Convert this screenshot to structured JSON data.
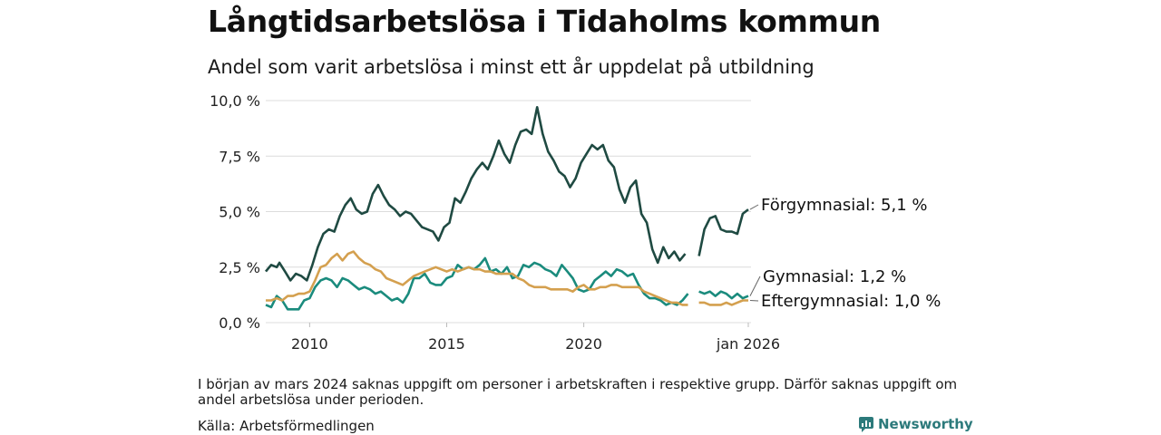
{
  "title": "Långtidsarbetslösa i Tidaholms kommun",
  "subtitle": "Andel som varit arbetslösa i minst ett år uppdelat på utbildning",
  "note": "I början av mars 2024 saknas uppgift om personer i arbetskraften i respektive grupp. Därför saknas uppgift om andel arbetslösa under perioden.",
  "source": "Källa: Arbetsförmedlingen",
  "brand": "Newsworthy",
  "chart_data": {
    "type": "line",
    "title": "Långtidsarbetslösa i Tidaholms kommun",
    "ylabel": "",
    "xlabel": "",
    "xlim": [
      2008.4,
      2026.1
    ],
    "ylim": [
      0,
      10
    ],
    "yticks": [
      0,
      2.5,
      5,
      7.5,
      10
    ],
    "ytick_labels": [
      "0,0 %",
      "2,5 %",
      "5,0 %",
      "7,5 %",
      "10,0 %"
    ],
    "xticks": [
      2010,
      2015,
      2020,
      2026.0
    ],
    "xtick_labels": [
      "2010",
      "2015",
      "2020",
      "jan 2026"
    ],
    "grid": true,
    "series": [
      {
        "name": "Förgymnasial",
        "color": "#1f4a42",
        "end_label": "Förgymnasial: 5,1 %",
        "points": [
          [
            2008.4,
            2.3
          ],
          [
            2008.6,
            2.6
          ],
          [
            2008.8,
            2.5
          ],
          [
            2008.9,
            2.7
          ],
          [
            2009.1,
            2.3
          ],
          [
            2009.3,
            1.9
          ],
          [
            2009.5,
            2.2
          ],
          [
            2009.7,
            2.1
          ],
          [
            2009.9,
            1.9
          ],
          [
            2010.1,
            2.6
          ],
          [
            2010.3,
            3.4
          ],
          [
            2010.5,
            4.0
          ],
          [
            2010.7,
            4.2
          ],
          [
            2010.9,
            4.1
          ],
          [
            2011.1,
            4.8
          ],
          [
            2011.3,
            5.3
          ],
          [
            2011.5,
            5.6
          ],
          [
            2011.7,
            5.1
          ],
          [
            2011.9,
            4.9
          ],
          [
            2012.1,
            5.0
          ],
          [
            2012.3,
            5.8
          ],
          [
            2012.5,
            6.2
          ],
          [
            2012.7,
            5.7
          ],
          [
            2012.9,
            5.3
          ],
          [
            2013.1,
            5.1
          ],
          [
            2013.3,
            4.8
          ],
          [
            2013.5,
            5.0
          ],
          [
            2013.7,
            4.9
          ],
          [
            2013.9,
            4.6
          ],
          [
            2014.1,
            4.3
          ],
          [
            2014.3,
            4.2
          ],
          [
            2014.5,
            4.1
          ],
          [
            2014.7,
            3.7
          ],
          [
            2014.9,
            4.3
          ],
          [
            2015.1,
            4.5
          ],
          [
            2015.3,
            5.6
          ],
          [
            2015.5,
            5.4
          ],
          [
            2015.7,
            5.9
          ],
          [
            2015.9,
            6.5
          ],
          [
            2016.1,
            6.9
          ],
          [
            2016.3,
            7.2
          ],
          [
            2016.5,
            6.9
          ],
          [
            2016.7,
            7.5
          ],
          [
            2016.9,
            8.2
          ],
          [
            2017.1,
            7.6
          ],
          [
            2017.3,
            7.2
          ],
          [
            2017.5,
            8.0
          ],
          [
            2017.7,
            8.6
          ],
          [
            2017.9,
            8.7
          ],
          [
            2018.1,
            8.5
          ],
          [
            2018.3,
            9.7
          ],
          [
            2018.5,
            8.5
          ],
          [
            2018.7,
            7.7
          ],
          [
            2018.9,
            7.3
          ],
          [
            2019.1,
            6.8
          ],
          [
            2019.3,
            6.6
          ],
          [
            2019.5,
            6.1
          ],
          [
            2019.7,
            6.5
          ],
          [
            2019.9,
            7.2
          ],
          [
            2020.1,
            7.6
          ],
          [
            2020.3,
            8.0
          ],
          [
            2020.5,
            7.8
          ],
          [
            2020.7,
            8.0
          ],
          [
            2020.9,
            7.3
          ],
          [
            2021.1,
            7.0
          ],
          [
            2021.3,
            6.0
          ],
          [
            2021.5,
            5.4
          ],
          [
            2021.7,
            6.1
          ],
          [
            2021.9,
            6.4
          ],
          [
            2022.1,
            4.9
          ],
          [
            2022.3,
            4.5
          ],
          [
            2022.5,
            3.3
          ],
          [
            2022.7,
            2.7
          ],
          [
            2022.9,
            3.4
          ],
          [
            2023.1,
            2.9
          ],
          [
            2023.3,
            3.2
          ],
          [
            2023.5,
            2.8
          ],
          [
            2023.7,
            3.1
          ],
          [
            null,
            null
          ],
          [
            2024.2,
            3.0
          ],
          [
            2024.4,
            4.2
          ],
          [
            2024.6,
            4.7
          ],
          [
            2024.8,
            4.8
          ],
          [
            2025.0,
            4.2
          ],
          [
            2025.2,
            4.1
          ],
          [
            2025.4,
            4.1
          ],
          [
            2025.6,
            4.0
          ],
          [
            2025.8,
            4.9
          ],
          [
            2026.0,
            5.1
          ]
        ]
      },
      {
        "name": "Gymnasial",
        "color": "#1a8b7d",
        "end_label": "Gymnasial: 1,2 %",
        "points": [
          [
            2008.4,
            0.8
          ],
          [
            2008.6,
            0.7
          ],
          [
            2008.8,
            1.2
          ],
          [
            2009.0,
            1.0
          ],
          [
            2009.2,
            0.6
          ],
          [
            2009.4,
            0.6
          ],
          [
            2009.6,
            0.6
          ],
          [
            2009.8,
            1.0
          ],
          [
            2010.0,
            1.1
          ],
          [
            2010.2,
            1.6
          ],
          [
            2010.4,
            1.9
          ],
          [
            2010.6,
            2.0
          ],
          [
            2010.8,
            1.9
          ],
          [
            2011.0,
            1.6
          ],
          [
            2011.2,
            2.0
          ],
          [
            2011.4,
            1.9
          ],
          [
            2011.6,
            1.7
          ],
          [
            2011.8,
            1.5
          ],
          [
            2012.0,
            1.6
          ],
          [
            2012.2,
            1.5
          ],
          [
            2012.4,
            1.3
          ],
          [
            2012.6,
            1.4
          ],
          [
            2012.8,
            1.2
          ],
          [
            2013.0,
            1.0
          ],
          [
            2013.2,
            1.1
          ],
          [
            2013.4,
            0.9
          ],
          [
            2013.6,
            1.3
          ],
          [
            2013.8,
            2.0
          ],
          [
            2014.0,
            2.0
          ],
          [
            2014.2,
            2.2
          ],
          [
            2014.4,
            1.8
          ],
          [
            2014.6,
            1.7
          ],
          [
            2014.8,
            1.7
          ],
          [
            2015.0,
            2.0
          ],
          [
            2015.2,
            2.1
          ],
          [
            2015.4,
            2.6
          ],
          [
            2015.6,
            2.4
          ],
          [
            2015.8,
            2.5
          ],
          [
            2016.0,
            2.4
          ],
          [
            2016.2,
            2.6
          ],
          [
            2016.4,
            2.9
          ],
          [
            2016.6,
            2.3
          ],
          [
            2016.8,
            2.4
          ],
          [
            2017.0,
            2.2
          ],
          [
            2017.2,
            2.5
          ],
          [
            2017.4,
            2.0
          ],
          [
            2017.6,
            2.1
          ],
          [
            2017.8,
            2.6
          ],
          [
            2018.0,
            2.5
          ],
          [
            2018.2,
            2.7
          ],
          [
            2018.4,
            2.6
          ],
          [
            2018.6,
            2.4
          ],
          [
            2018.8,
            2.3
          ],
          [
            2019.0,
            2.1
          ],
          [
            2019.2,
            2.6
          ],
          [
            2019.4,
            2.3
          ],
          [
            2019.6,
            2.0
          ],
          [
            2019.8,
            1.5
          ],
          [
            2020.0,
            1.4
          ],
          [
            2020.2,
            1.5
          ],
          [
            2020.4,
            1.9
          ],
          [
            2020.6,
            2.1
          ],
          [
            2020.8,
            2.3
          ],
          [
            2021.0,
            2.1
          ],
          [
            2021.2,
            2.4
          ],
          [
            2021.4,
            2.3
          ],
          [
            2021.6,
            2.1
          ],
          [
            2021.8,
            2.2
          ],
          [
            2022.0,
            1.7
          ],
          [
            2022.2,
            1.3
          ],
          [
            2022.4,
            1.1
          ],
          [
            2022.6,
            1.1
          ],
          [
            2022.8,
            1.0
          ],
          [
            2023.0,
            0.8
          ],
          [
            2023.2,
            0.9
          ],
          [
            2023.4,
            0.8
          ],
          [
            2023.6,
            1.0
          ],
          [
            2023.8,
            1.3
          ],
          [
            null,
            null
          ],
          [
            2024.2,
            1.4
          ],
          [
            2024.4,
            1.3
          ],
          [
            2024.6,
            1.4
          ],
          [
            2024.8,
            1.2
          ],
          [
            2025.0,
            1.4
          ],
          [
            2025.2,
            1.3
          ],
          [
            2025.4,
            1.1
          ],
          [
            2025.6,
            1.3
          ],
          [
            2025.8,
            1.1
          ],
          [
            2026.0,
            1.2
          ]
        ]
      },
      {
        "name": "Eftergymnasial",
        "color": "#d4a04f",
        "end_label": "Eftergymnasial: 1,0 %",
        "points": [
          [
            2008.4,
            1.0
          ],
          [
            2008.6,
            1.0
          ],
          [
            2008.8,
            1.1
          ],
          [
            2009.0,
            1.0
          ],
          [
            2009.2,
            1.2
          ],
          [
            2009.4,
            1.2
          ],
          [
            2009.6,
            1.3
          ],
          [
            2009.8,
            1.3
          ],
          [
            2010.0,
            1.4
          ],
          [
            2010.2,
            1.9
          ],
          [
            2010.4,
            2.5
          ],
          [
            2010.6,
            2.6
          ],
          [
            2010.8,
            2.9
          ],
          [
            2011.0,
            3.1
          ],
          [
            2011.2,
            2.8
          ],
          [
            2011.4,
            3.1
          ],
          [
            2011.6,
            3.2
          ],
          [
            2011.8,
            2.9
          ],
          [
            2012.0,
            2.7
          ],
          [
            2012.2,
            2.6
          ],
          [
            2012.4,
            2.4
          ],
          [
            2012.6,
            2.3
          ],
          [
            2012.8,
            2.0
          ],
          [
            2013.0,
            1.9
          ],
          [
            2013.2,
            1.8
          ],
          [
            2013.4,
            1.7
          ],
          [
            2013.6,
            1.9
          ],
          [
            2013.8,
            2.1
          ],
          [
            2014.0,
            2.2
          ],
          [
            2014.2,
            2.3
          ],
          [
            2014.4,
            2.4
          ],
          [
            2014.6,
            2.5
          ],
          [
            2014.8,
            2.4
          ],
          [
            2015.0,
            2.3
          ],
          [
            2015.2,
            2.4
          ],
          [
            2015.4,
            2.3
          ],
          [
            2015.6,
            2.4
          ],
          [
            2015.8,
            2.5
          ],
          [
            2016.0,
            2.4
          ],
          [
            2016.2,
            2.4
          ],
          [
            2016.4,
            2.3
          ],
          [
            2016.6,
            2.3
          ],
          [
            2016.8,
            2.2
          ],
          [
            2017.0,
            2.2
          ],
          [
            2017.2,
            2.2
          ],
          [
            2017.4,
            2.2
          ],
          [
            2017.6,
            2.0
          ],
          [
            2017.8,
            1.9
          ],
          [
            2018.0,
            1.7
          ],
          [
            2018.2,
            1.6
          ],
          [
            2018.4,
            1.6
          ],
          [
            2018.6,
            1.6
          ],
          [
            2018.8,
            1.5
          ],
          [
            2019.0,
            1.5
          ],
          [
            2019.2,
            1.5
          ],
          [
            2019.4,
            1.5
          ],
          [
            2019.6,
            1.4
          ],
          [
            2019.8,
            1.6
          ],
          [
            2020.0,
            1.7
          ],
          [
            2020.2,
            1.5
          ],
          [
            2020.4,
            1.5
          ],
          [
            2020.6,
            1.6
          ],
          [
            2020.8,
            1.6
          ],
          [
            2021.0,
            1.7
          ],
          [
            2021.2,
            1.7
          ],
          [
            2021.4,
            1.6
          ],
          [
            2021.6,
            1.6
          ],
          [
            2021.8,
            1.6
          ],
          [
            2022.0,
            1.6
          ],
          [
            2022.2,
            1.4
          ],
          [
            2022.4,
            1.3
          ],
          [
            2022.6,
            1.2
          ],
          [
            2022.8,
            1.1
          ],
          [
            2023.0,
            1.0
          ],
          [
            2023.2,
            0.9
          ],
          [
            2023.4,
            0.9
          ],
          [
            2023.6,
            0.8
          ],
          [
            2023.8,
            0.8
          ],
          [
            null,
            null
          ],
          [
            2024.2,
            0.9
          ],
          [
            2024.4,
            0.9
          ],
          [
            2024.6,
            0.8
          ],
          [
            2024.8,
            0.8
          ],
          [
            2025.0,
            0.8
          ],
          [
            2025.2,
            0.9
          ],
          [
            2025.4,
            0.8
          ],
          [
            2025.6,
            0.9
          ],
          [
            2025.8,
            1.0
          ],
          [
            2026.0,
            1.0
          ]
        ]
      }
    ]
  }
}
